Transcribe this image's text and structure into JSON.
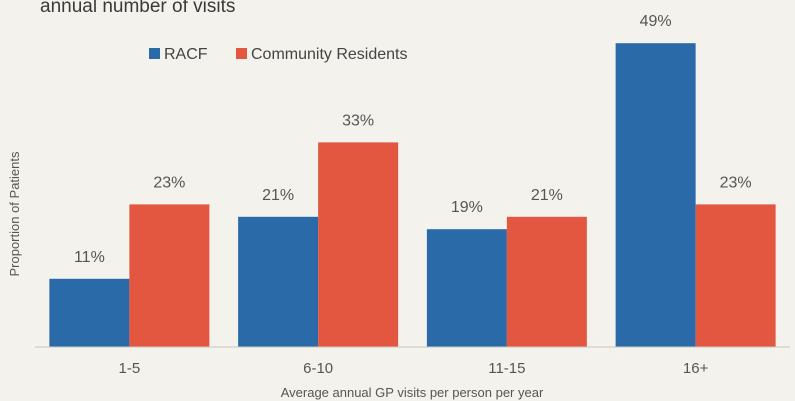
{
  "chart_data": {
    "type": "bar",
    "title": "annual number of visits",
    "xlabel": "Average annual GP visits per person per year",
    "ylabel": "Proportion of Patients",
    "categories": [
      "1-5",
      "6-10",
      "11-15",
      "16+"
    ],
    "series": [
      {
        "name": "RACF",
        "color": "#2a6aa9",
        "values": [
          11,
          21,
          19,
          49
        ],
        "labels": [
          "11%",
          "21%",
          "19%",
          "49%"
        ]
      },
      {
        "name": "Community Residents",
        "color": "#e35741",
        "values": [
          23,
          33,
          21,
          23
        ],
        "labels": [
          "23%",
          "33%",
          "21%",
          "23%"
        ]
      }
    ],
    "ylim": [
      0,
      50
    ],
    "grid": false,
    "legend_position": "top-left"
  }
}
